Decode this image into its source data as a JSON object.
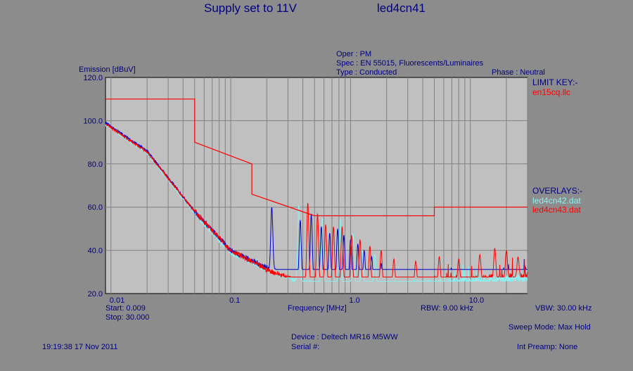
{
  "header": {
    "title_left": "Supply set to 11V",
    "title_right": "led4cn41",
    "oper": "Oper : PM",
    "spec": "Spec : EN 55015, Fluorescents/Luminaires",
    "type": "Type : Conducted",
    "phase": "Phase : Neutral"
  },
  "legend": {
    "limit_key_label": "LIMIT KEY:-",
    "limit_file": "en15cq.llc",
    "overlays_label": "OVERLAYS:-",
    "overlay_1": "led4cn42.dat",
    "overlay_2": "led4cn43.dat"
  },
  "footer": {
    "start": "Start: 0.009",
    "stop": "Stop: 30.000",
    "rbw": "RBW: 9.00 kHz",
    "vbw": "VBW: 30.00 kHz",
    "sweep_mode": "Sweep Mode: Max Hold",
    "device": "Device : Deltech MR16 M5WW",
    "serial": "Serial #:",
    "int_preamp": "Int Preamp: None",
    "timestamp": "19:19:38 17 Nov 2011"
  },
  "colors": {
    "background": "#8c8c8c",
    "plot_area": "#c0c0c0",
    "text": "#000080",
    "limit": "#ff0000",
    "trace_main": "#0000c8",
    "overlay_1": "#8cf0f0",
    "overlay_2": "#ff0000",
    "grid": "#808080"
  },
  "chart_data": {
    "type": "line",
    "xlabel": "Frequency [MHz]",
    "ylabel": "Emission [dBuV]",
    "x_scale": "log",
    "xlim": [
      0.009,
      30
    ],
    "ylim": [
      20,
      120
    ],
    "grid": true,
    "legend_placement": "right",
    "x_ticks": [
      {
        "value": 0.01,
        "label": "0.01"
      },
      {
        "value": 0.1,
        "label": "0.1"
      },
      {
        "value": 1,
        "label": "1.0"
      },
      {
        "value": 10,
        "label": "10.0"
      }
    ],
    "y_ticks": [
      {
        "value": 20,
        "label": "20.0"
      },
      {
        "value": 40,
        "label": "40.0"
      },
      {
        "value": 60,
        "label": "60.0"
      },
      {
        "value": 80,
        "label": "80.0"
      },
      {
        "value": 100,
        "label": "100.0"
      },
      {
        "value": 120,
        "label": "120.0"
      }
    ],
    "limit_line": {
      "name": "en15cq.llc",
      "points": [
        [
          0.009,
          110
        ],
        [
          0.05,
          110
        ],
        [
          0.05,
          90
        ],
        [
          0.15,
          80
        ],
        [
          0.15,
          66
        ],
        [
          0.5,
          56
        ],
        [
          5,
          56
        ],
        [
          5,
          60
        ],
        [
          30,
          60
        ]
      ]
    },
    "series": [
      {
        "name": "led4cn41",
        "baseline": [
          [
            0.009,
            99
          ],
          [
            0.02,
            86
          ],
          [
            0.05,
            58
          ],
          [
            0.1,
            40
          ],
          [
            0.2,
            32
          ],
          [
            0.4,
            26
          ],
          [
            1,
            24
          ],
          [
            3,
            24
          ],
          [
            10,
            25
          ],
          [
            30,
            27
          ]
        ],
        "peaks": [
          [
            0.22,
            60
          ],
          [
            0.38,
            54
          ],
          [
            0.47,
            57
          ],
          [
            0.57,
            51
          ],
          [
            0.67,
            48
          ],
          [
            0.78,
            50
          ],
          [
            0.88,
            47
          ],
          [
            1.0,
            45
          ],
          [
            1.15,
            43
          ],
          [
            1.3,
            40
          ],
          [
            1.5,
            37
          ],
          [
            1.8,
            34
          ]
        ]
      },
      {
        "name": "led4cn42.dat",
        "baseline": [
          [
            0.009,
            98
          ],
          [
            0.02,
            85
          ],
          [
            0.05,
            57
          ],
          [
            0.1,
            39
          ],
          [
            0.2,
            31
          ],
          [
            0.4,
            25
          ],
          [
            1,
            24
          ],
          [
            3,
            24
          ],
          [
            10,
            25
          ],
          [
            30,
            27
          ]
        ],
        "peaks": [
          [
            0.37,
            61
          ],
          [
            0.58,
            55
          ],
          [
            0.82,
            55
          ],
          [
            1.05,
            48
          ],
          [
            1.25,
            40
          ],
          [
            1.6,
            38
          ]
        ]
      },
      {
        "name": "led4cn43.dat",
        "baseline": [
          [
            0.009,
            98.5
          ],
          [
            0.02,
            85.5
          ],
          [
            0.05,
            58
          ],
          [
            0.1,
            40
          ],
          [
            0.2,
            31
          ],
          [
            0.4,
            25
          ],
          [
            1,
            23.5
          ],
          [
            3,
            24
          ],
          [
            10,
            26
          ],
          [
            30,
            28
          ]
        ],
        "peaks": [
          [
            0.44,
            62
          ],
          [
            0.53,
            57
          ],
          [
            0.62,
            52
          ],
          [
            0.72,
            51
          ],
          [
            0.85,
            51
          ],
          [
            1.02,
            47
          ],
          [
            1.2,
            45
          ],
          [
            1.45,
            42
          ],
          [
            1.8,
            40
          ],
          [
            2.3,
            36
          ],
          [
            3.5,
            35
          ],
          [
            5.5,
            37
          ],
          [
            8,
            36
          ],
          [
            12,
            38
          ],
          [
            16,
            41
          ],
          [
            20,
            40
          ],
          [
            25,
            37
          ]
        ]
      }
    ]
  }
}
